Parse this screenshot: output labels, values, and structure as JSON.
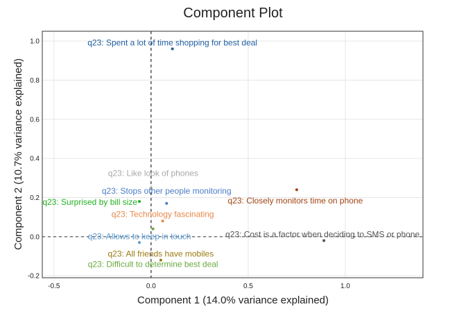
{
  "chart_data": {
    "type": "scatter",
    "title": "Component Plot",
    "xlabel": "Component 1 (14.0% variance explained)",
    "ylabel": "Component 2 (10.7% variance explained)",
    "xlim": [
      -0.56,
      1.4
    ],
    "ylim": [
      -0.21,
      1.05
    ],
    "x_ticks": [
      -0.5,
      0.0,
      0.5,
      1.0
    ],
    "x_tick_labels": [
      "-0.5",
      "0.0",
      "0.5",
      "1.0"
    ],
    "y_ticks": [
      -0.2,
      0.0,
      0.2,
      0.4,
      0.6,
      0.8,
      1.0
    ],
    "y_tick_labels": [
      "-0.2",
      "0.0",
      "0.2",
      "0.4",
      "0.6",
      "0.8",
      "1.0"
    ],
    "grid": true,
    "reference_lines": {
      "x": 0,
      "y": 0,
      "style": "dashed"
    },
    "points": [
      {
        "label": "q23: Spent a lot of time shopping for best deal",
        "x": 0.11,
        "y": 0.96,
        "color": "#1f5fa0"
      },
      {
        "label": "q23: Like look of phones",
        "x": 0.0,
        "y": 0.25,
        "color": "#a8a8a8"
      },
      {
        "label": "q23: Stops other people monitoring",
        "x": 0.08,
        "y": 0.17,
        "color": "#4a7cc4"
      },
      {
        "label": "q23: Closely monitors time on phone",
        "x": 0.75,
        "y": 0.24,
        "color": "#a0420f"
      },
      {
        "label": "q23: Surprised by bill size",
        "x": -0.06,
        "y": 0.18,
        "color": "#22b022"
      },
      {
        "label": "q23: Technology fascinating",
        "x": 0.06,
        "y": 0.08,
        "color": "#e8884a"
      },
      {
        "label": "q23: Allows to keep in touch",
        "x": -0.06,
        "y": -0.03,
        "color": "#5a9ad0"
      },
      {
        "label": "q23: Cost is a factor when deciding to SMS or phone",
        "x": 0.89,
        "y": -0.02,
        "color": "#555555"
      },
      {
        "label": "q23: All friends have mobiles",
        "x": 0.05,
        "y": -0.12,
        "color": "#9a7a10"
      },
      {
        "label": "q23: Difficult to determine best deal",
        "x": 0.01,
        "y": 0.04,
        "color": "#6aaa40"
      }
    ]
  }
}
